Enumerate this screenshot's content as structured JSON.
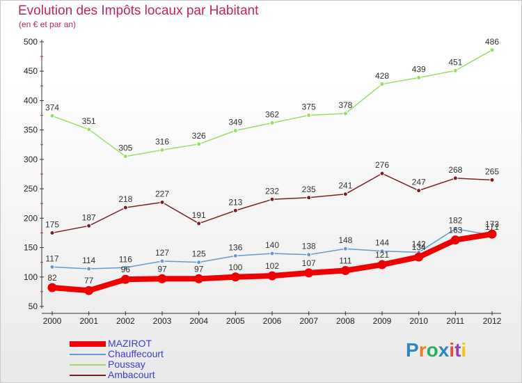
{
  "title": "Evolution des Impôts locaux par Habitant",
  "subtitle": "(en € et par an)",
  "logo_text": "Proxiti",
  "colors": {
    "title": "#c3245f",
    "legend_text": "#3b3bd6",
    "logo": [
      "#2e86c1",
      "#e67e22",
      "#27ae60",
      "#2e86c1",
      "#e74c3c",
      "#8e44ad",
      "#f1c40f"
    ]
  },
  "chart_data": {
    "type": "line",
    "title": "Evolution des Impôts locaux par Habitant",
    "subtitle": "(en € et par an)",
    "x": [
      "2000",
      "2001",
      "2002",
      "2003",
      "2004",
      "2005",
      "2006",
      "2007",
      "2008",
      "2009",
      "2010",
      "2011",
      "2012"
    ],
    "ylim": [
      50,
      500
    ],
    "yticks": [
      50,
      100,
      150,
      200,
      250,
      300,
      350,
      400,
      450,
      500
    ],
    "grid": false,
    "legend_position": "bottom-left",
    "series": [
      {
        "name": "MAZIROT",
        "color": "#ee0000",
        "values": [
          82,
          77,
          96,
          97,
          97,
          100,
          102,
          107,
          111,
          121,
          134,
          163,
          173
        ],
        "labels": [
          "82",
          "77",
          "96",
          "97",
          "97",
          "100",
          "102",
          "107",
          "111",
          "121",
          "134",
          "163",
          "173"
        ]
      },
      {
        "name": "Chauffecourt",
        "color": "#6699cc",
        "values": [
          117,
          114,
          116,
          127,
          125,
          136,
          140,
          138,
          148,
          144,
          142,
          182,
          171
        ],
        "labels": [
          "117",
          "114",
          "116",
          "127",
          "125",
          "136",
          "140",
          "138",
          "148",
          "144",
          "142",
          "182",
          "171"
        ]
      },
      {
        "name": "Poussay",
        "color": "#99dd66",
        "values": [
          374,
          351,
          305,
          316,
          326,
          349,
          362,
          375,
          378,
          428,
          439,
          451,
          486
        ],
        "labels": [
          "374",
          "351",
          "305",
          "316",
          "326",
          "349",
          "362",
          "375",
          "378",
          "428",
          "439",
          "451",
          "486"
        ]
      },
      {
        "name": "Ambacourt",
        "color": "#772222",
        "values": [
          175,
          187,
          218,
          227,
          191,
          213,
          232,
          235,
          241,
          276,
          247,
          268,
          265
        ],
        "labels": [
          "175",
          "187",
          "218",
          "227",
          "191",
          "213",
          "232",
          "235",
          "241",
          "276",
          "247",
          "268",
          "265"
        ]
      }
    ]
  }
}
